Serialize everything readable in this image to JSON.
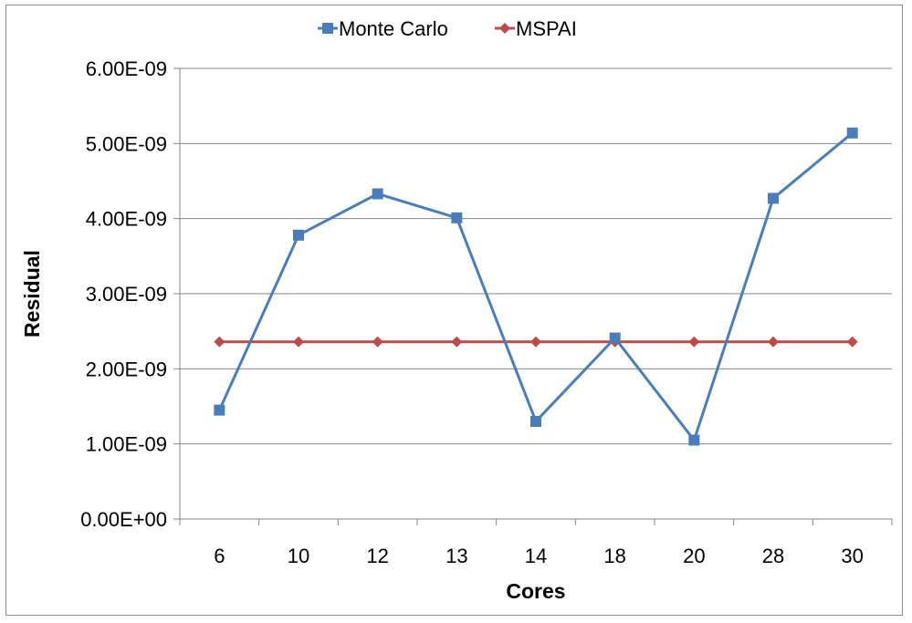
{
  "chart_data": {
    "type": "line",
    "xlabel": "Cores",
    "ylabel": "Residual",
    "categories": [
      "6",
      "10",
      "12",
      "13",
      "14",
      "18",
      "20",
      "28",
      "30"
    ],
    "ylim": [
      0,
      6e-09
    ],
    "yticks": [
      0,
      1e-09,
      2e-09,
      3e-09,
      4e-09,
      5e-09,
      6e-09
    ],
    "ytick_labels": [
      "0.00E+00",
      "1.00E-09",
      "2.00E-09",
      "3.00E-09",
      "4.00E-09",
      "5.00E-09",
      "6.00E-09"
    ],
    "grid": "horizontal",
    "legend_position": "top-center",
    "series": [
      {
        "name": "Monte Carlo",
        "color": "#4a7ebb",
        "marker": "square",
        "values": [
          1.45e-09,
          3.78e-09,
          4.33e-09,
          4.01e-09,
          1.3e-09,
          2.41e-09,
          1.05e-09,
          4.27e-09,
          5.14e-09
        ]
      },
      {
        "name": "MSPAI",
        "color": "#be4b48",
        "marker": "diamond",
        "values": [
          2.36e-09,
          2.36e-09,
          2.36e-09,
          2.36e-09,
          2.36e-09,
          2.36e-09,
          2.36e-09,
          2.36e-09,
          2.36e-09
        ]
      }
    ]
  }
}
